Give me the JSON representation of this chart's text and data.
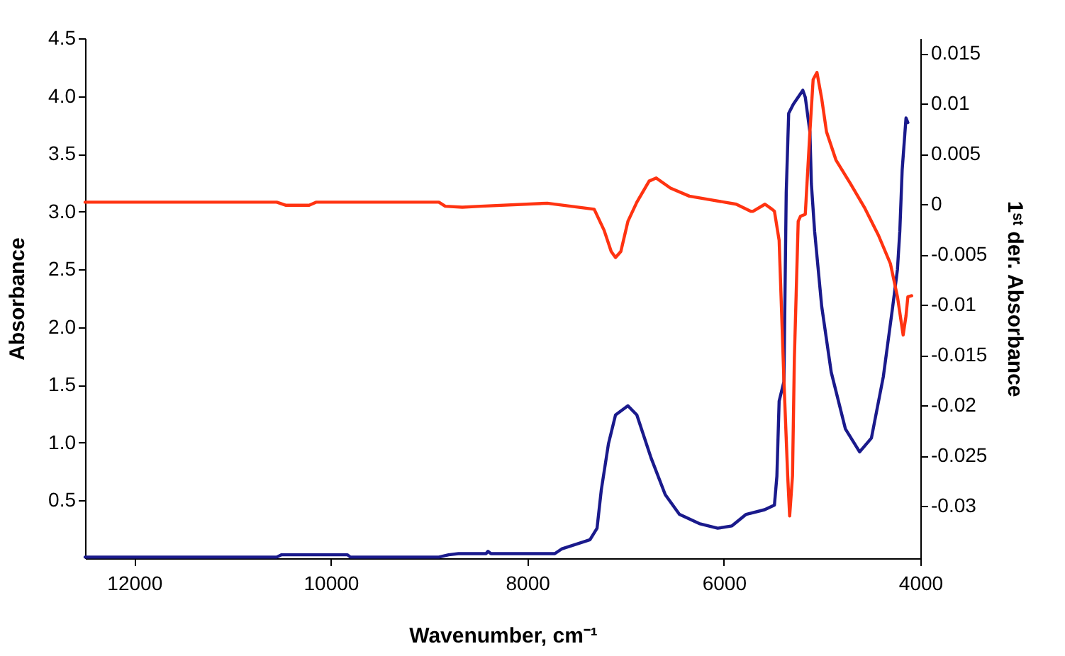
{
  "chart_data": {
    "type": "line",
    "xlabel": "Wavenumber, cm⁻¹",
    "ylabel": "Absorbance",
    "y2label": "1ˢᵗ der. Absorbance",
    "xlim": [
      12500,
      4000
    ],
    "xticks": [
      12000,
      10000,
      8000,
      6000,
      4000
    ],
    "ylim": [
      0,
      4.5
    ],
    "yticks": [
      {
        "value": 0.5,
        "label": "0.5"
      },
      {
        "value": 1,
        "label": "1.0"
      },
      {
        "value": 1.5,
        "label": "1.5"
      },
      {
        "value": 2,
        "label": "2.0"
      },
      {
        "value": 2.5,
        "label": "2.5"
      },
      {
        "value": 3,
        "label": "3.0"
      },
      {
        "value": 3.5,
        "label": "3.5"
      },
      {
        "value": 4,
        "label": "4.0"
      },
      {
        "value": 4.5,
        "label": "4.5"
      }
    ],
    "y2lim": [
      -0.0352,
      0.0165
    ],
    "y2ticks": [
      -0.03,
      -0.025,
      -0.02,
      -0.015,
      -0.01,
      -0.005,
      0,
      0.005,
      0.01,
      0.015
    ],
    "grid": false,
    "series": [
      {
        "color": "#1a1a8c",
        "x": [
          12500,
          10550,
          10500,
          9830,
          9800,
          8900,
          8800,
          8700,
          8420,
          8400,
          8370,
          7720,
          7651,
          7362,
          7290,
          7247,
          7174,
          7102,
          6976,
          6885,
          6741,
          6596,
          6452,
          6250,
          6062,
          5917,
          5773,
          5585,
          5485,
          5460,
          5437,
          5388,
          5365,
          5340,
          5292,
          5196,
          5171,
          5124,
          5109,
          5076,
          5004,
          4907,
          4763,
          4618,
          4498,
          4377,
          4281,
          4233,
          4209,
          4185,
          4146,
          4127
        ],
        "values": [
          0.01,
          0.01,
          0.03,
          0.03,
          0.01,
          0.01,
          0.03,
          0.04,
          0.04,
          0.06,
          0.04,
          0.04,
          0.08,
          0.16,
          0.26,
          0.59,
          0.99,
          1.24,
          1.32,
          1.24,
          0.87,
          0.55,
          0.38,
          0.3,
          0.26,
          0.28,
          0.38,
          0.42,
          0.46,
          0.71,
          1.36,
          1.53,
          3.16,
          3.85,
          3.93,
          4.05,
          3.99,
          3.69,
          3.24,
          2.83,
          2.18,
          1.61,
          1.12,
          0.92,
          1.04,
          1.57,
          2.18,
          2.5,
          2.83,
          3.36,
          3.81,
          3.77
        ]
      },
      {
        "color": "#ff3311",
        "axis": "y2",
        "x": [
          12500,
          10550,
          10460,
          10220,
          10150,
          8900,
          8835,
          8661,
          8474,
          7796,
          7319,
          7218,
          7146,
          7102,
          7048,
          6976,
          6885,
          6760,
          6688,
          6543,
          6351,
          6110,
          5874,
          5726,
          5701,
          5581,
          5509,
          5485,
          5437,
          5388,
          5350,
          5330,
          5301,
          5282,
          5243,
          5220,
          5171,
          5124,
          5091,
          5052,
          5004,
          4955,
          4859,
          4715,
          4570,
          4426,
          4305,
          4233,
          4175,
          4146,
          4127,
          4088
        ],
        "values": [
          0.0002,
          0.0002,
          -0.0001,
          -0.0001,
          0.0002,
          0.0002,
          -0.0002,
          -0.0003,
          -0.0002,
          0.0001,
          -0.0005,
          -0.0026,
          -0.0047,
          -0.0053,
          -0.0047,
          -0.0017,
          0.0002,
          0.0023,
          0.0026,
          0.0016,
          0.0008,
          0.0004,
          0.0,
          -0.0007,
          -0.0007,
          0.0,
          -0.0005,
          -0.0007,
          -0.0036,
          -0.0176,
          -0.027,
          -0.031,
          -0.027,
          -0.0153,
          -0.0017,
          -0.0012,
          -0.001,
          0.0072,
          0.0124,
          0.0131,
          0.0105,
          0.0072,
          0.0044,
          0.0021,
          -0.0003,
          -0.0031,
          -0.0059,
          -0.0092,
          -0.013,
          -0.0111,
          -0.0092,
          -0.0091
        ]
      }
    ]
  }
}
